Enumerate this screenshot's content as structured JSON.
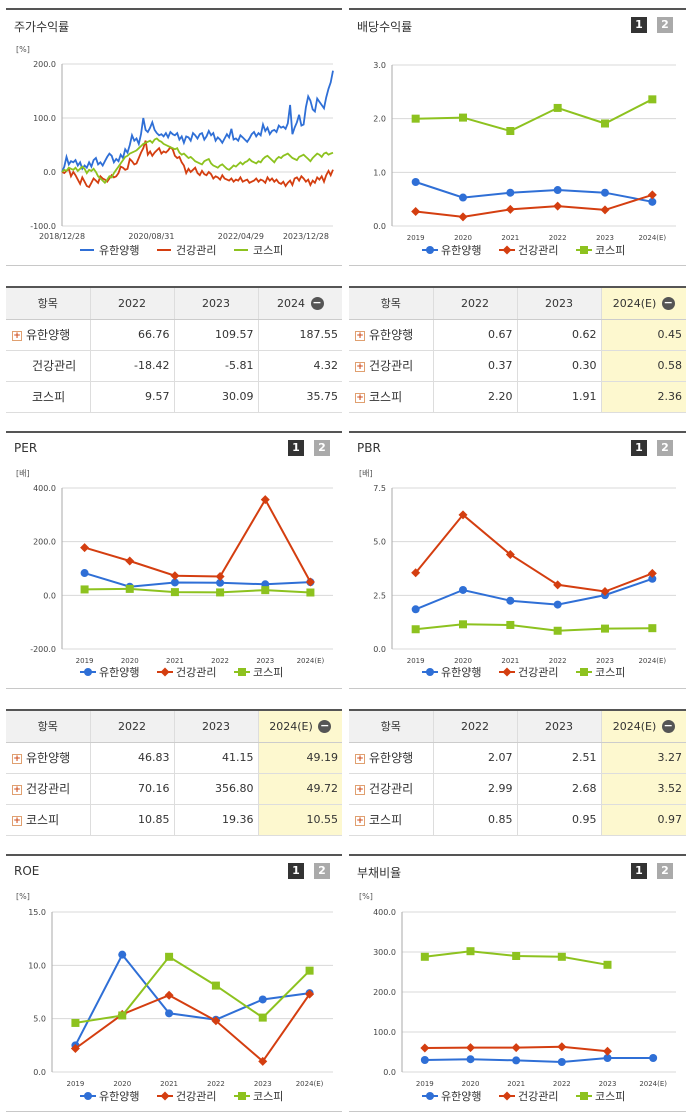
{
  "panels": {
    "stock": {
      "title": "주가수익률"
    },
    "div": {
      "title": "배당수익률",
      "page1": "1",
      "page2": "2"
    },
    "per": {
      "title": "PER",
      "page1": "1",
      "page2": "2"
    },
    "pbr": {
      "title": "PBR",
      "page1": "1",
      "page2": "2"
    },
    "roe": {
      "title": "ROE",
      "page1": "1",
      "page2": "2"
    },
    "debt": {
      "title": "부채비율",
      "page1": "1",
      "page2": "2"
    }
  },
  "legend": [
    "유한양행",
    "건강관리",
    "코스피"
  ],
  "colors": {
    "유한양행": "#2f6fd6",
    "건강관리": "#d43e10",
    "코스피": "#8dc21f"
  },
  "tables": {
    "stock": {
      "headers": [
        "항목",
        "2022",
        "2023",
        "2024"
      ],
      "rows": [
        {
          "name": "유한양행",
          "plus": true,
          "values": [
            "66.76",
            "109.57",
            "187.55"
          ]
        },
        {
          "name": "건강관리",
          "plus": false,
          "values": [
            "-18.42",
            "-5.81",
            "4.32"
          ]
        },
        {
          "name": "코스피",
          "plus": false,
          "values": [
            "9.57",
            "30.09",
            "35.75"
          ]
        }
      ]
    },
    "div": {
      "headers": [
        "항목",
        "2022",
        "2023",
        "2024(E)"
      ],
      "rows": [
        {
          "name": "유한양행",
          "plus": true,
          "values": [
            "0.67",
            "0.62",
            "0.45"
          ]
        },
        {
          "name": "건강관리",
          "plus": true,
          "values": [
            "0.37",
            "0.30",
            "0.58"
          ]
        },
        {
          "name": "코스피",
          "plus": true,
          "values": [
            "2.20",
            "1.91",
            "2.36"
          ]
        }
      ]
    },
    "per": {
      "headers": [
        "항목",
        "2022",
        "2023",
        "2024(E)"
      ],
      "rows": [
        {
          "name": "유한양행",
          "plus": true,
          "values": [
            "46.83",
            "41.15",
            "49.19"
          ]
        },
        {
          "name": "건강관리",
          "plus": true,
          "values": [
            "70.16",
            "356.80",
            "49.72"
          ]
        },
        {
          "name": "코스피",
          "plus": true,
          "values": [
            "10.85",
            "19.36",
            "10.55"
          ]
        }
      ]
    },
    "pbr": {
      "headers": [
        "항목",
        "2022",
        "2023",
        "2024(E)"
      ],
      "rows": [
        {
          "name": "유한양행",
          "plus": true,
          "values": [
            "2.07",
            "2.51",
            "3.27"
          ]
        },
        {
          "name": "건강관리",
          "plus": true,
          "values": [
            "2.99",
            "2.68",
            "3.52"
          ]
        },
        {
          "name": "코스피",
          "plus": true,
          "values": [
            "0.85",
            "0.95",
            "0.97"
          ]
        }
      ]
    }
  },
  "chart_data": [
    {
      "id": "stock",
      "type": "line",
      "title": "주가수익률",
      "unit": "[%]",
      "ylim": [
        -100,
        200
      ],
      "yticks": [
        "200.0",
        "100.0",
        "0.0",
        "-100.0"
      ],
      "xticks": [
        "2018/12/28",
        "2020/08/31",
        "2022/04/29",
        "2023/12/28"
      ],
      "series": [
        {
          "name": "유한양행",
          "values": [
            0,
            10,
            28,
            14,
            20,
            18,
            22,
            12,
            18,
            6,
            12,
            8,
            18,
            10,
            22,
            26,
            14,
            18,
            12,
            20,
            28,
            34,
            30,
            18,
            24,
            20,
            32,
            26,
            42,
            36,
            50,
            68,
            58,
            62,
            52,
            70,
            100,
            78,
            74,
            82,
            92,
            78,
            72,
            68,
            70,
            66,
            72,
            64,
            74,
            70,
            68,
            72,
            60,
            66,
            54,
            66,
            64,
            58,
            72,
            68,
            62,
            70,
            72,
            60,
            66,
            76,
            68,
            72,
            58,
            64,
            60,
            54,
            62,
            70,
            64,
            80,
            60,
            62,
            58,
            68,
            64,
            60,
            56,
            62,
            70,
            74,
            66,
            72,
            68,
            88,
            76,
            82,
            70,
            76,
            78,
            74,
            86,
            82,
            84,
            80,
            90,
            124,
            70,
            82,
            92,
            106,
            86,
            88,
            120,
            140,
            132,
            116,
            112,
            136,
            130,
            124,
            118,
            138,
            154,
            166,
            187.55
          ]
        },
        {
          "name": "건강관리",
          "values": [
            0,
            -2,
            2,
            6,
            -8,
            0,
            -6,
            -14,
            -22,
            -10,
            -18,
            -26,
            -28,
            -20,
            -12,
            -16,
            -20,
            -8,
            -12,
            -14,
            -18,
            -12,
            -6,
            -10,
            -8,
            -2,
            10,
            8,
            4,
            6,
            24,
            20,
            14,
            16,
            26,
            36,
            44,
            58,
            32,
            38,
            30,
            36,
            40,
            44,
            34,
            38,
            36,
            40,
            46,
            42,
            30,
            26,
            28,
            18,
            12,
            -2,
            6,
            0,
            4,
            8,
            -2,
            -6,
            2,
            -4,
            -6,
            0,
            -4,
            -12,
            -8,
            -10,
            -14,
            -6,
            -12,
            -14,
            -16,
            -12,
            -18,
            -14,
            -16,
            -10,
            -18,
            -16,
            -14,
            -20,
            -18,
            -16,
            -12,
            -18,
            -14,
            -16,
            -20,
            -10,
            -16,
            -12,
            -18,
            -14,
            -20,
            -22,
            -18,
            -26,
            -20,
            -16,
            -24,
            -12,
            -10,
            -16,
            -8,
            -12,
            -18,
            -14,
            -24,
            -16,
            -20,
            -10,
            -14,
            -8,
            -18,
            -6,
            2,
            -6,
            4.32
          ]
        },
        {
          "name": "코스피",
          "values": [
            0,
            4,
            2,
            8,
            6,
            4,
            8,
            2,
            6,
            10,
            6,
            -2,
            4,
            2,
            6,
            0,
            -8,
            -12,
            -16,
            -20,
            -14,
            -8,
            -10,
            -2,
            4,
            10,
            16,
            22,
            28,
            30,
            34,
            36,
            38,
            40,
            44,
            48,
            52,
            54,
            56,
            58,
            54,
            60,
            62,
            58,
            56,
            52,
            50,
            48,
            46,
            44,
            42,
            44,
            36,
            32,
            34,
            30,
            26,
            28,
            24,
            20,
            18,
            16,
            14,
            20,
            22,
            24,
            16,
            12,
            10,
            8,
            12,
            14,
            10,
            6,
            4,
            8,
            12,
            10,
            14,
            18,
            14,
            18,
            20,
            24,
            20,
            18,
            16,
            20,
            18,
            24,
            28,
            30,
            26,
            22,
            18,
            24,
            28,
            26,
            30,
            32,
            34,
            30,
            26,
            24,
            22,
            28,
            30,
            32,
            28,
            24,
            20,
            26,
            30,
            34,
            32,
            28,
            34,
            36,
            32,
            34,
            35.75
          ]
        }
      ]
    },
    {
      "id": "div",
      "type": "line",
      "title": "배당수익률",
      "unit": "",
      "ylim": [
        0,
        3
      ],
      "yticks": [
        "3.0",
        "2.0",
        "1.0",
        "0.0"
      ],
      "categories": [
        "2019",
        "2020",
        "2021",
        "2022",
        "2023",
        "2024(E)"
      ],
      "series": [
        {
          "name": "유한양행",
          "values": [
            0.82,
            0.53,
            0.62,
            0.67,
            0.62,
            0.45
          ]
        },
        {
          "name": "건강관리",
          "values": [
            0.27,
            0.17,
            0.31,
            0.37,
            0.3,
            0.58
          ]
        },
        {
          "name": "코스피",
          "values": [
            2.0,
            2.02,
            1.77,
            2.2,
            1.91,
            2.36
          ]
        }
      ]
    },
    {
      "id": "per",
      "type": "line",
      "title": "PER",
      "unit": "[배]",
      "ylim": [
        -200,
        400
      ],
      "yticks": [
        "400.0",
        "200.0",
        "0.0",
        "-200.0"
      ],
      "categories": [
        "2019",
        "2020",
        "2021",
        "2022",
        "2023",
        "2024(E)"
      ],
      "series": [
        {
          "name": "유한양행",
          "values": [
            83,
            32,
            48,
            46.83,
            41.15,
            49.19
          ]
        },
        {
          "name": "건강관리",
          "values": [
            178,
            128,
            73,
            70.16,
            356.8,
            49.72
          ]
        },
        {
          "name": "코스피",
          "values": [
            22,
            24,
            12,
            10.85,
            19.36,
            10.55
          ]
        }
      ]
    },
    {
      "id": "pbr",
      "type": "line",
      "title": "PBR",
      "unit": "[배]",
      "ylim": [
        0,
        7.5
      ],
      "yticks": [
        "7.5",
        "5.0",
        "2.5",
        "0.0"
      ],
      "categories": [
        "2019",
        "2020",
        "2021",
        "2022",
        "2023",
        "2024(E)"
      ],
      "series": [
        {
          "name": "유한양행",
          "values": [
            1.85,
            2.75,
            2.25,
            2.07,
            2.51,
            3.27
          ]
        },
        {
          "name": "건강관리",
          "values": [
            3.55,
            6.25,
            4.4,
            2.99,
            2.68,
            3.52
          ]
        },
        {
          "name": "코스피",
          "values": [
            0.92,
            1.15,
            1.12,
            0.85,
            0.95,
            0.97
          ]
        }
      ]
    },
    {
      "id": "roe",
      "type": "line",
      "title": "ROE",
      "unit": "[%]",
      "ylim": [
        0,
        15
      ],
      "yticks": [
        "15.0",
        "10.0",
        "5.0",
        "0.0"
      ],
      "categories": [
        "2019",
        "2020",
        "2021",
        "2022",
        "2023",
        "2024(E)"
      ],
      "series": [
        {
          "name": "유한양행",
          "values": [
            2.5,
            11.0,
            5.5,
            4.9,
            6.8,
            7.4
          ]
        },
        {
          "name": "건강관리",
          "values": [
            2.2,
            5.4,
            7.2,
            4.8,
            1.0,
            7.3
          ]
        },
        {
          "name": "코스피",
          "values": [
            4.6,
            5.3,
            10.8,
            8.1,
            5.1,
            9.5
          ]
        }
      ]
    },
    {
      "id": "debt",
      "type": "line",
      "title": "부채비율",
      "unit": "[%]",
      "ylim": [
        0,
        400
      ],
      "yticks": [
        "400.0",
        "300.0",
        "200.0",
        "100.0",
        "0.0"
      ],
      "categories": [
        "2019",
        "2020",
        "2021",
        "2022",
        "2023",
        "2024(E)"
      ],
      "series": [
        {
          "name": "유한양행",
          "values": [
            30,
            32,
            29,
            25,
            35,
            35
          ]
        },
        {
          "name": "건강관리",
          "values": [
            60,
            61,
            61,
            63,
            52,
            null
          ]
        },
        {
          "name": "코스피",
          "values": [
            288,
            302,
            290,
            288,
            268,
            null
          ]
        }
      ]
    }
  ]
}
